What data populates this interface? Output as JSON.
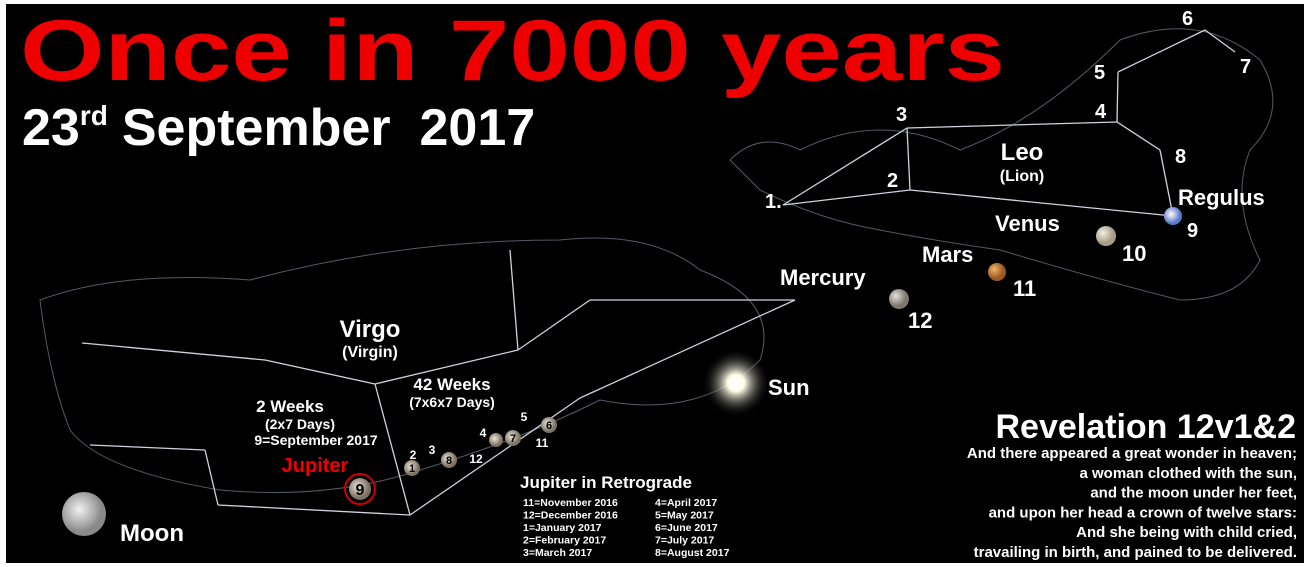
{
  "header": {
    "title": "Once in 7000 years",
    "date_day": "23",
    "date_suffix": "rd",
    "date_rest": "September  2017"
  },
  "leo": {
    "name": "Leo",
    "subtitle": "(Lion)",
    "star_labels": [
      "1.",
      "2",
      "3",
      "4",
      "5",
      "6",
      "7",
      "8",
      "9"
    ],
    "regulus": "Regulus"
  },
  "planets": [
    {
      "name": "Venus",
      "label": "10"
    },
    {
      "name": "Mars",
      "label": "11"
    },
    {
      "name": "Mercury",
      "label": "12"
    }
  ],
  "sun": "Sun",
  "virgo": {
    "name": "Virgo",
    "subtitle": "(Virgin)",
    "weeks_42": "42 Weeks",
    "weeks_42_detail": "(7x6x7 Days)",
    "weeks_2": "2 Weeks",
    "weeks_2_detail": "(2x7 Days)",
    "september": "9=September 2017",
    "jupiter": "Jupiter",
    "jupiter_number": "9"
  },
  "jupiter_positions": [
    "1",
    "2",
    "3",
    "8",
    "12",
    "4",
    "7",
    "11",
    "5",
    "6"
  ],
  "moon": "Moon",
  "retrograde": {
    "title": "Jupiter in Retrograde",
    "left": [
      "11=November 2016",
      "12=December 2016",
      "1=January 2017",
      "2=February 2017",
      "3=March 2017"
    ],
    "right": [
      "4=April 2017",
      "5=May 2017",
      "6=June 2017",
      "7=July 2017",
      "8=August 2017"
    ]
  },
  "revelation": {
    "title": "Revelation 12v1&2",
    "lines": [
      "And there appeared a great wonder in heaven;",
      "a woman clothed with the sun,",
      "and the moon under her feet,",
      "and upon her head a crown of twelve stars:",
      "And she being with child cried,",
      "travailing in birth, and pained to be delivered."
    ]
  }
}
